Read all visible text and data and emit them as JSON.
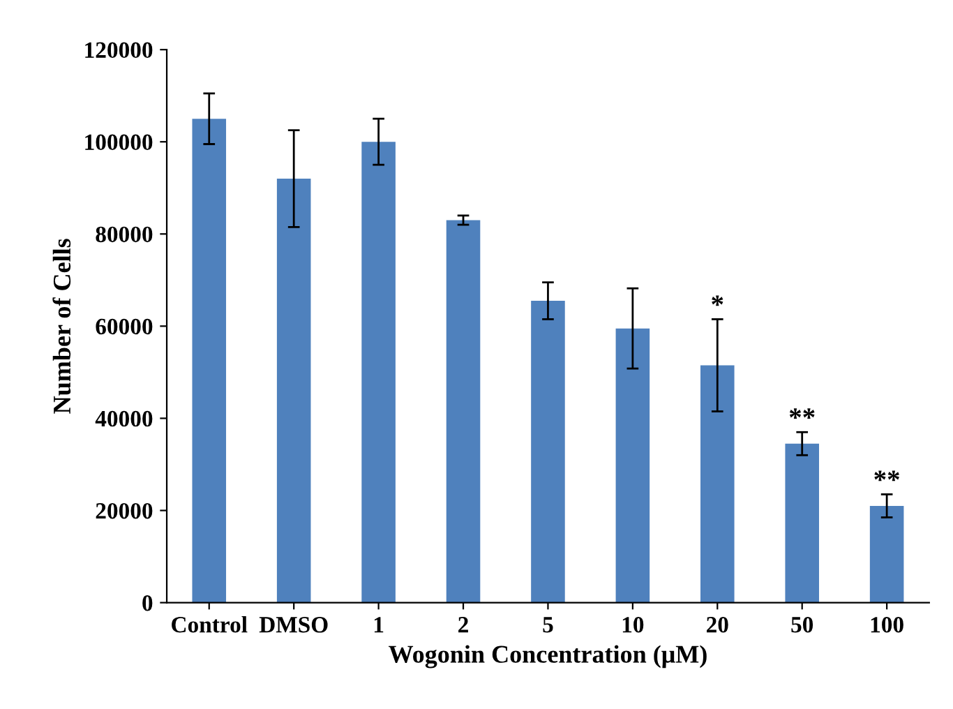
{
  "chart_data": {
    "type": "bar",
    "xlabel": "Wogonin Concentration (μM)",
    "ylabel": "Number of Cells",
    "categories": [
      "Control",
      "DMSO",
      "1",
      "2",
      "5",
      "10",
      "20",
      "50",
      "100"
    ],
    "values": [
      105000,
      92000,
      100000,
      83000,
      65500,
      59500,
      51500,
      34500,
      21000
    ],
    "errors": [
      5500,
      10500,
      5000,
      1000,
      4000,
      8700,
      10000,
      2500,
      2500
    ],
    "color": "#4f81bd",
    "ylim": [
      0,
      120000
    ],
    "yticks": [
      0,
      20000,
      40000,
      60000,
      80000,
      100000,
      120000
    ],
    "grid": false,
    "annotations": [
      {
        "text": "*",
        "x": "20",
        "y": 61500
      },
      {
        "text": "**",
        "x": "50",
        "y": 37000
      },
      {
        "text": "**",
        "x": "100",
        "y": 23500
      }
    ]
  }
}
